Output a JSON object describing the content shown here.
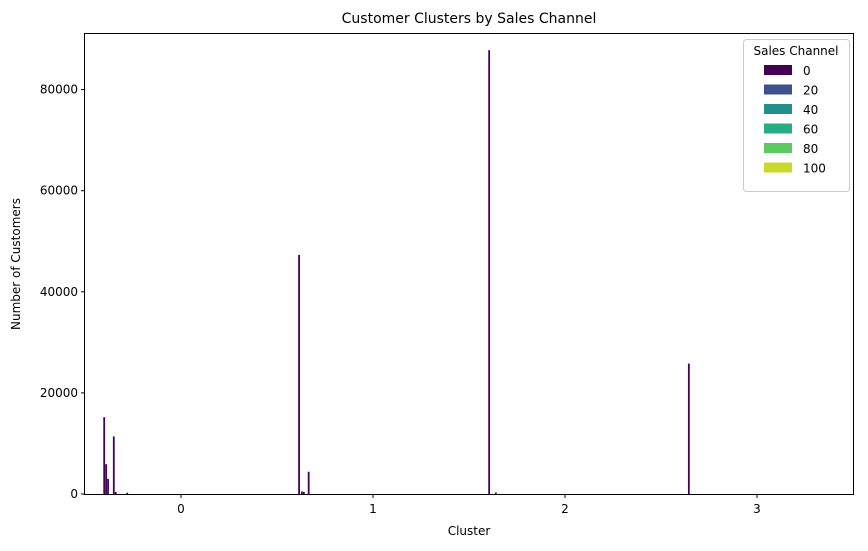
{
  "chart_data": {
    "type": "bar",
    "title": "Customer Clusters by Sales Channel",
    "xlabel": "Cluster",
    "ylabel": "Number of Customers",
    "categories": [
      "0",
      "1",
      "2",
      "3"
    ],
    "ylim": [
      0,
      91000
    ],
    "yticks": [
      0,
      20000,
      40000,
      60000,
      80000
    ],
    "legend": {
      "title": "Sales Channel",
      "position": "top-right",
      "entries": [
        {
          "label": "0",
          "color": "#440154"
        },
        {
          "label": "20",
          "color": "#3b528b"
        },
        {
          "label": "40",
          "color": "#21908d"
        },
        {
          "label": "60",
          "color": "#27ad81"
        },
        {
          "label": "80",
          "color": "#5ec962"
        },
        {
          "label": "100",
          "color": "#c8d92c"
        }
      ]
    },
    "bar_color": "#440154",
    "bars": [
      {
        "cluster": "0",
        "offset": -0.4,
        "value": 15200
      },
      {
        "cluster": "0",
        "offset": -0.39,
        "value": 5900
      },
      {
        "cluster": "0",
        "offset": -0.38,
        "value": 3000
      },
      {
        "cluster": "0",
        "offset": -0.35,
        "value": 11400
      },
      {
        "cluster": "0",
        "offset": -0.34,
        "value": 400
      },
      {
        "cluster": "0",
        "offset": -0.28,
        "value": 250
      },
      {
        "cluster": "1",
        "offset": -0.385,
        "value": 47300
      },
      {
        "cluster": "1",
        "offset": -0.37,
        "value": 500
      },
      {
        "cluster": "1",
        "offset": -0.36,
        "value": 400
      },
      {
        "cluster": "1",
        "offset": -0.335,
        "value": 4400
      },
      {
        "cluster": "2",
        "offset": -0.395,
        "value": 87800
      },
      {
        "cluster": "2",
        "offset": -0.36,
        "value": 300
      },
      {
        "cluster": "3",
        "offset": -0.355,
        "value": 25800
      }
    ]
  }
}
